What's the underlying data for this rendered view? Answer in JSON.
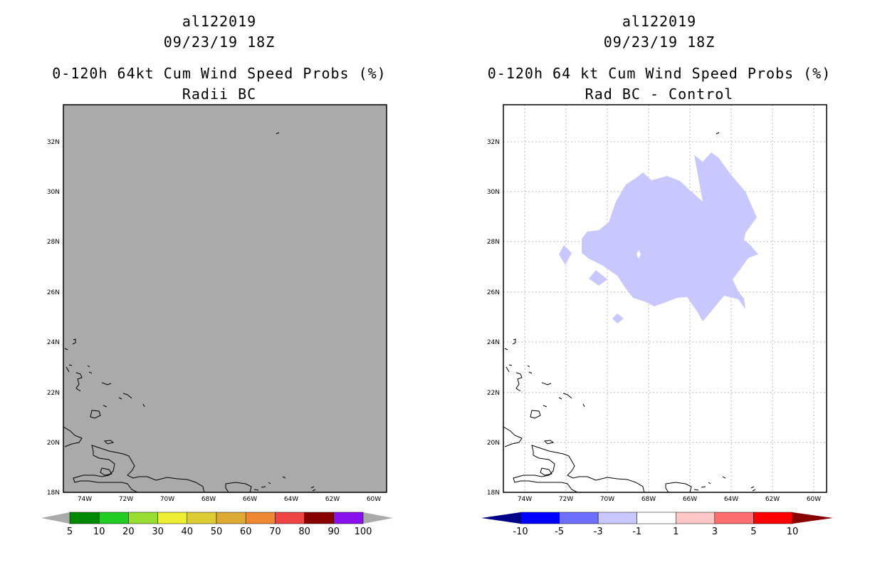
{
  "left": {
    "title_lines": [
      "al122019",
      "09/23/19 18Z",
      "0-120h 64kt Cum Wind Speed Probs (%)",
      "Radii BC"
    ],
    "background_color": "#aaaaaa",
    "lat_labels": [
      "32N",
      "30N",
      "28N",
      "26N",
      "24N",
      "22N",
      "20N",
      "18N"
    ],
    "lon_labels": [
      "74W",
      "72W",
      "70W",
      "68W",
      "66W",
      "64W",
      "62W",
      "60W"
    ],
    "colorbar": {
      "labels": [
        "5",
        "10",
        "20",
        "30",
        "40",
        "50",
        "60",
        "70",
        "80",
        "90",
        "100"
      ],
      "colors": [
        "#008800",
        "#22cc22",
        "#99dd33",
        "#eeee33",
        "#ddcc33",
        "#ddaa33",
        "#ee8833",
        "#ee4444",
        "#880000",
        "#8811ee"
      ],
      "end_color": "#aaaaaa"
    }
  },
  "right": {
    "title_lines": [
      "al122019",
      "09/23/19 18Z",
      "0-120h 64 kt Cum Wind Speed Probs (%)",
      "Rad BC - Control"
    ],
    "background_color": "#ffffff",
    "anomaly_color": "#c8c8ff",
    "lat_labels": [
      "32N",
      "30N",
      "28N",
      "26N",
      "24N",
      "22N",
      "20N",
      "18N"
    ],
    "lon_labels": [
      "74W",
      "72W",
      "70W",
      "68W",
      "66W",
      "64W",
      "62W",
      "60W"
    ],
    "colorbar": {
      "labels": [
        "-10",
        "-5",
        "-3",
        "-1",
        "1",
        "3",
        "5",
        "10"
      ],
      "colors": [
        "#0000ff",
        "#6e6eff",
        "#c8c8ff",
        "#ffffff",
        "#ffc8c8",
        "#ff6e6e",
        "#ff0000"
      ],
      "left_end_color": "#000088",
      "right_end_color": "#880000"
    }
  }
}
